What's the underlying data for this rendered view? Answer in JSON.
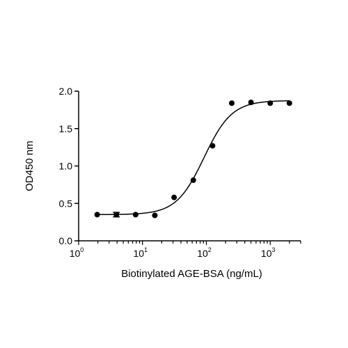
{
  "chart_data": {
    "type": "scatter",
    "title": "",
    "xlabel": "Biotinylated AGE-BSA (ng/mL)",
    "ylabel": "OD450 nm",
    "xscale": "log",
    "xlim": [
      1,
      3000
    ],
    "ylim": [
      0,
      2.0
    ],
    "x_ticks": [
      {
        "base": "10",
        "exp": "0",
        "value": 1
      },
      {
        "base": "10",
        "exp": "1",
        "value": 10
      },
      {
        "base": "10",
        "exp": "2",
        "value": 100
      },
      {
        "base": "10",
        "exp": "3",
        "value": 1000
      }
    ],
    "y_ticks": [
      "0.0",
      "0.5",
      "1.0",
      "1.5",
      "2.0"
    ],
    "grid": false,
    "points": [
      {
        "x": 1.95,
        "y": 0.35,
        "err": 0
      },
      {
        "x": 3.9,
        "y": 0.35,
        "err": 0.03
      },
      {
        "x": 7.8,
        "y": 0.35,
        "err": 0
      },
      {
        "x": 15.6,
        "y": 0.34,
        "err": 0
      },
      {
        "x": 31.25,
        "y": 0.58,
        "err": 0
      },
      {
        "x": 62.5,
        "y": 0.81,
        "err": 0
      },
      {
        "x": 125,
        "y": 1.27,
        "err": 0
      },
      {
        "x": 250,
        "y": 1.84,
        "err": 0
      },
      {
        "x": 500,
        "y": 1.85,
        "err": 0
      },
      {
        "x": 1000,
        "y": 1.84,
        "err": 0
      },
      {
        "x": 2000,
        "y": 1.84,
        "err": 0
      }
    ],
    "fit_curve": {
      "model": "4PL",
      "bottom": 0.35,
      "top": 1.875,
      "ec50": 92,
      "hill": 2.0,
      "x_range": [
        1.95,
        2000
      ]
    },
    "colors": {
      "axis": "#000000",
      "marker": "#000000",
      "curve": "#000000"
    }
  }
}
